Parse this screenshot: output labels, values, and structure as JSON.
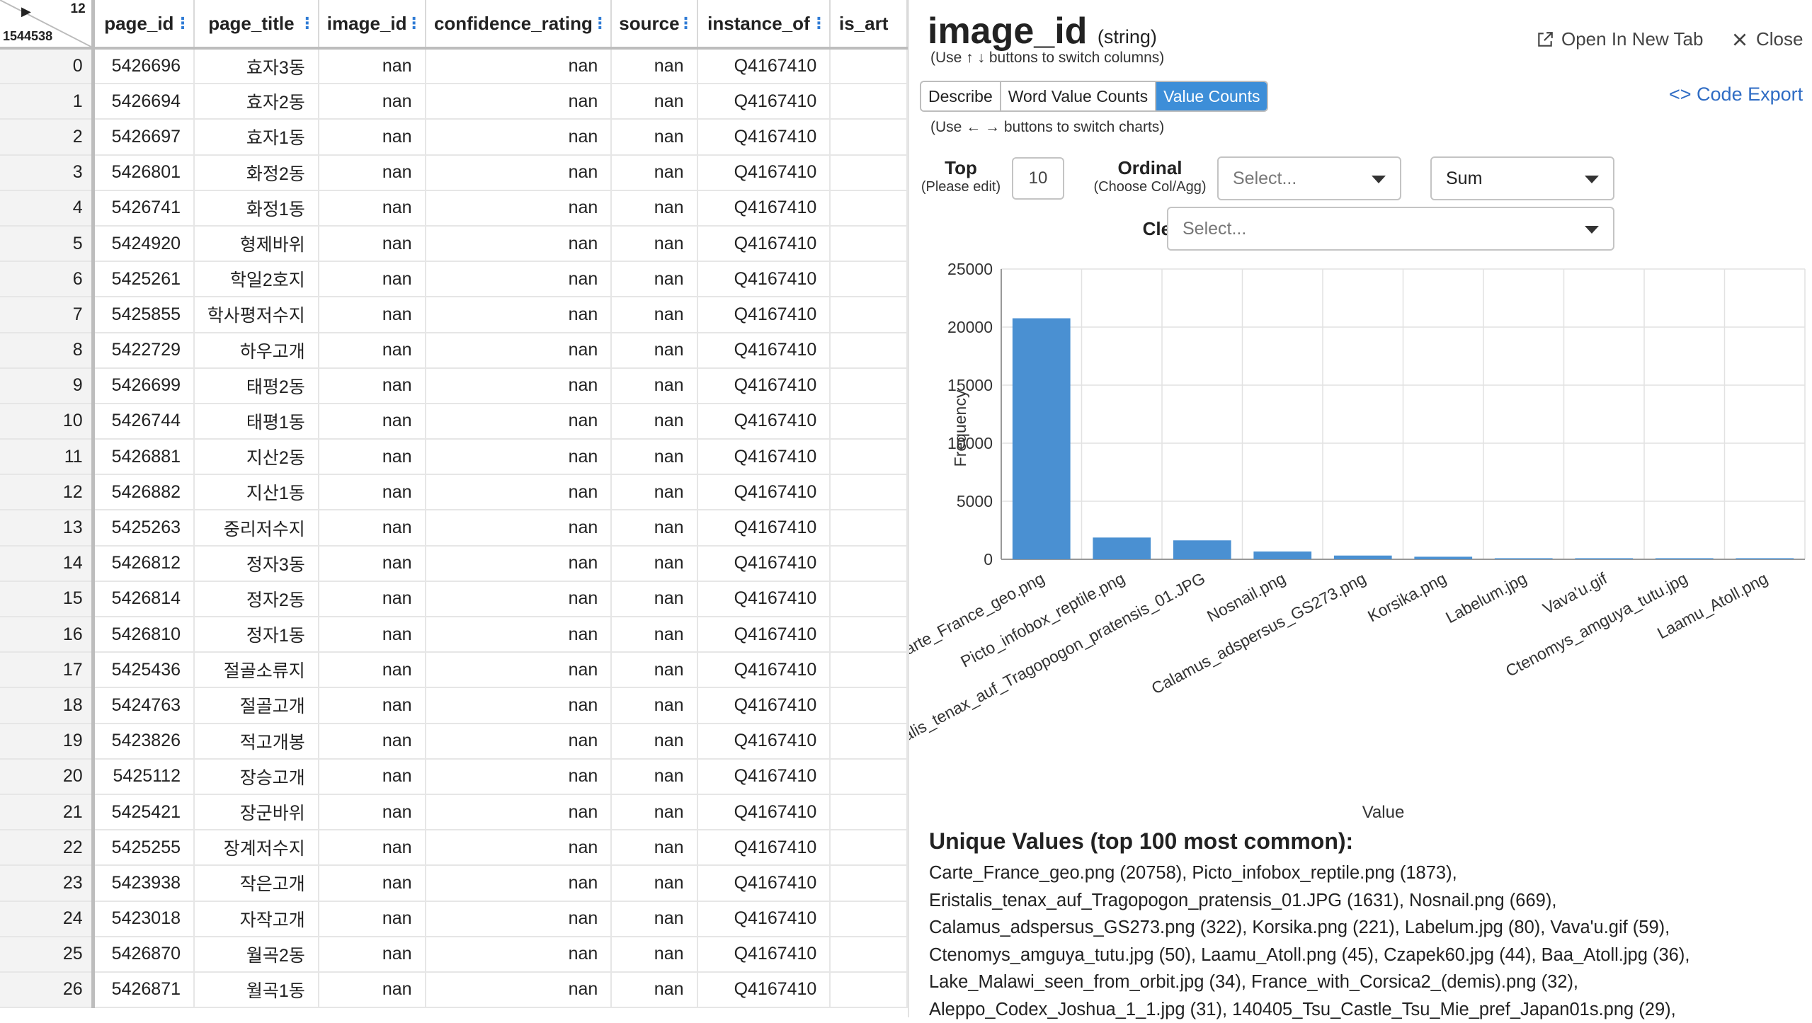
{
  "grid": {
    "corner": {
      "play_glyph": "▶",
      "col_count": "12",
      "row_count": "1544538"
    },
    "columns": [
      "page_id",
      "page_title",
      "image_id",
      "confidence_rating",
      "source",
      "instance_of",
      "is_art"
    ],
    "rows": [
      [
        "0",
        "5426696",
        "효자3동",
        "nan",
        "nan",
        "nan",
        "Q4167410"
      ],
      [
        "1",
        "5426694",
        "효자2동",
        "nan",
        "nan",
        "nan",
        "Q4167410"
      ],
      [
        "2",
        "5426697",
        "효자1동",
        "nan",
        "nan",
        "nan",
        "Q4167410"
      ],
      [
        "3",
        "5426801",
        "화정2동",
        "nan",
        "nan",
        "nan",
        "Q4167410"
      ],
      [
        "4",
        "5426741",
        "화정1동",
        "nan",
        "nan",
        "nan",
        "Q4167410"
      ],
      [
        "5",
        "5424920",
        "형제바위",
        "nan",
        "nan",
        "nan",
        "Q4167410"
      ],
      [
        "6",
        "5425261",
        "학일2호지",
        "nan",
        "nan",
        "nan",
        "Q4167410"
      ],
      [
        "7",
        "5425855",
        "학사평저수지",
        "nan",
        "nan",
        "nan",
        "Q4167410"
      ],
      [
        "8",
        "5422729",
        "하우고개",
        "nan",
        "nan",
        "nan",
        "Q4167410"
      ],
      [
        "9",
        "5426699",
        "태평2동",
        "nan",
        "nan",
        "nan",
        "Q4167410"
      ],
      [
        "10",
        "5426744",
        "태평1동",
        "nan",
        "nan",
        "nan",
        "Q4167410"
      ],
      [
        "11",
        "5426881",
        "지산2동",
        "nan",
        "nan",
        "nan",
        "Q4167410"
      ],
      [
        "12",
        "5426882",
        "지산1동",
        "nan",
        "nan",
        "nan",
        "Q4167410"
      ],
      [
        "13",
        "5425263",
        "중리저수지",
        "nan",
        "nan",
        "nan",
        "Q4167410"
      ],
      [
        "14",
        "5426812",
        "정자3동",
        "nan",
        "nan",
        "nan",
        "Q4167410"
      ],
      [
        "15",
        "5426814",
        "정자2동",
        "nan",
        "nan",
        "nan",
        "Q4167410"
      ],
      [
        "16",
        "5426810",
        "정자1동",
        "nan",
        "nan",
        "nan",
        "Q4167410"
      ],
      [
        "17",
        "5425436",
        "절골소류지",
        "nan",
        "nan",
        "nan",
        "Q4167410"
      ],
      [
        "18",
        "5424763",
        "절골고개",
        "nan",
        "nan",
        "nan",
        "Q4167410"
      ],
      [
        "19",
        "5423826",
        "적고개봉",
        "nan",
        "nan",
        "nan",
        "Q4167410"
      ],
      [
        "20",
        "5425112",
        "장승고개",
        "nan",
        "nan",
        "nan",
        "Q4167410"
      ],
      [
        "21",
        "5425421",
        "장군바위",
        "nan",
        "nan",
        "nan",
        "Q4167410"
      ],
      [
        "22",
        "5425255",
        "장계저수지",
        "nan",
        "nan",
        "nan",
        "Q4167410"
      ],
      [
        "23",
        "5423938",
        "작은고개",
        "nan",
        "nan",
        "nan",
        "Q4167410"
      ],
      [
        "24",
        "5423018",
        "자작고개",
        "nan",
        "nan",
        "nan",
        "Q4167410"
      ],
      [
        "25",
        "5426870",
        "월곡2동",
        "nan",
        "nan",
        "nan",
        "Q4167410"
      ],
      [
        "26",
        "5426871",
        "월곡1동",
        "nan",
        "nan",
        "nan",
        "Q4167410"
      ]
    ]
  },
  "panel": {
    "column_name": "image_id",
    "dtype": "(string)",
    "switch_hint": "(Use ↑ ↓ buttons to switch columns)",
    "open_tab_label": "Open In New Tab",
    "close_label": "Close",
    "tabs": [
      "Describe",
      "Word Value Counts",
      "Value Counts"
    ],
    "active_tab": "Value Counts",
    "code_export_label": "<> Code Export",
    "chart_hint": "(Use ← → buttons to switch charts)",
    "top_label": "Top",
    "top_sublabel": "(Please edit)",
    "top_value": "10",
    "ordinal_label": "Ordinal",
    "ordinal_sublabel": "(Choose Col/Agg)",
    "ordinal_placeholder": "Select...",
    "agg_value": "Sum",
    "cleaner_label": "Cleaner",
    "cleaner_placeholder": "Select...",
    "unique_title": "Unique Values (top 100 most common):",
    "unique_text": "Carte_France_geo.png (20758), Picto_infobox_reptile.png (1873), Eristalis_tenax_auf_Tragopogon_pratensis_01.JPG (1631), Nosnail.png (669), Calamus_adspersus_GS273.png (322), Korsika.png (221), Labelum.jpg (80), Vava'u.gif (59), Ctenomys_amguya_tutu.jpg (50), Laamu_Atoll.png (45), Czapek60.jpg (44), Baa_Atoll.jpg (36), Lake_Malawi_seen_from_orbit.jpg (34), France_with_Corsica2_(demis).png (32), Aleppo_Codex_Joshua_1_1.jpg (31), 140405_Tsu_Castle_Tsu_Mie_pref_Japan01s.png (29),"
  },
  "icons": {
    "open_tab": "external-link-icon",
    "close": "close-icon"
  },
  "colors": {
    "accent": "#3d8ed8",
    "bar": "#4a90d2",
    "link": "#2f6cc4",
    "dots": "#2f7bd5"
  },
  "chart_data": {
    "type": "bar",
    "categories": [
      "Carte_France_geo.png",
      "Picto_infobox_reptile.png",
      "Eristalis_tenax_auf_Tragopogon_pratensis_01.JPG",
      "Nosnail.png",
      "Calamus_adspersus_GS273.png",
      "Korsika.png",
      "Labelum.jpg",
      "Vava'u.gif",
      "Ctenomys_amguya_tutu.jpg",
      "Laamu_Atoll.png"
    ],
    "values": [
      20758,
      1873,
      1631,
      669,
      322,
      221,
      80,
      59,
      50,
      45
    ],
    "xlabel": "Value",
    "ylabel": "Frequency",
    "ylim": [
      0,
      25000
    ],
    "yticks": [
      0,
      5000,
      10000,
      15000,
      20000,
      25000
    ],
    "grid": true
  }
}
